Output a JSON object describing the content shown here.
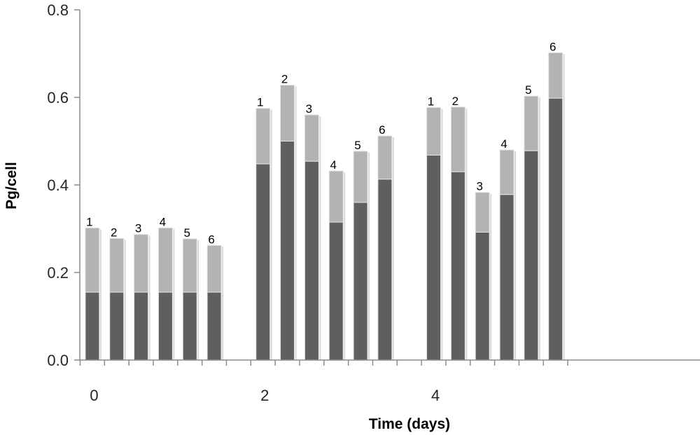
{
  "chart_data": {
    "type": "bar",
    "stacked": true,
    "xlabel": "Time (days)",
    "ylabel": "Pg/cell",
    "ylim": [
      0,
      0.8
    ],
    "yticks": [
      "0.0",
      "0.2",
      "0.4",
      "0.6",
      "0.8"
    ],
    "xtick_labels": [
      "0",
      "2",
      "4"
    ],
    "grid": false,
    "legend": "none",
    "groups": [
      {
        "time": "0",
        "bars": [
          {
            "label": "1",
            "lower": 0.155,
            "total": 0.302
          },
          {
            "label": "2",
            "lower": 0.155,
            "total": 0.278
          },
          {
            "label": "3",
            "lower": 0.155,
            "total": 0.287
          },
          {
            "label": "4",
            "lower": 0.155,
            "total": 0.302
          },
          {
            "label": "5",
            "lower": 0.155,
            "total": 0.277
          },
          {
            "label": "6",
            "lower": 0.155,
            "total": 0.262
          }
        ]
      },
      {
        "time": "2",
        "bars": [
          {
            "label": "1",
            "lower": 0.448,
            "total": 0.575
          },
          {
            "label": "2",
            "lower": 0.5,
            "total": 0.628
          },
          {
            "label": "3",
            "lower": 0.454,
            "total": 0.56
          },
          {
            "label": "4",
            "lower": 0.315,
            "total": 0.432
          },
          {
            "label": "5",
            "lower": 0.36,
            "total": 0.477
          },
          {
            "label": "6",
            "lower": 0.413,
            "total": 0.512
          }
        ]
      },
      {
        "time": "4",
        "bars": [
          {
            "label": "1",
            "lower": 0.468,
            "total": 0.577
          },
          {
            "label": "2",
            "lower": 0.43,
            "total": 0.578
          },
          {
            "label": "3",
            "lower": 0.292,
            "total": 0.383
          },
          {
            "label": "4",
            "lower": 0.378,
            "total": 0.48
          },
          {
            "label": "5",
            "lower": 0.478,
            "total": 0.603
          },
          {
            "label": "6",
            "lower": 0.598,
            "total": 0.702
          }
        ]
      }
    ],
    "colors": {
      "lower": "#5f5f5f",
      "upper": "#b3b3b3",
      "bar_edge": "#e6e6e6",
      "axis": "#8c8c8c"
    }
  }
}
